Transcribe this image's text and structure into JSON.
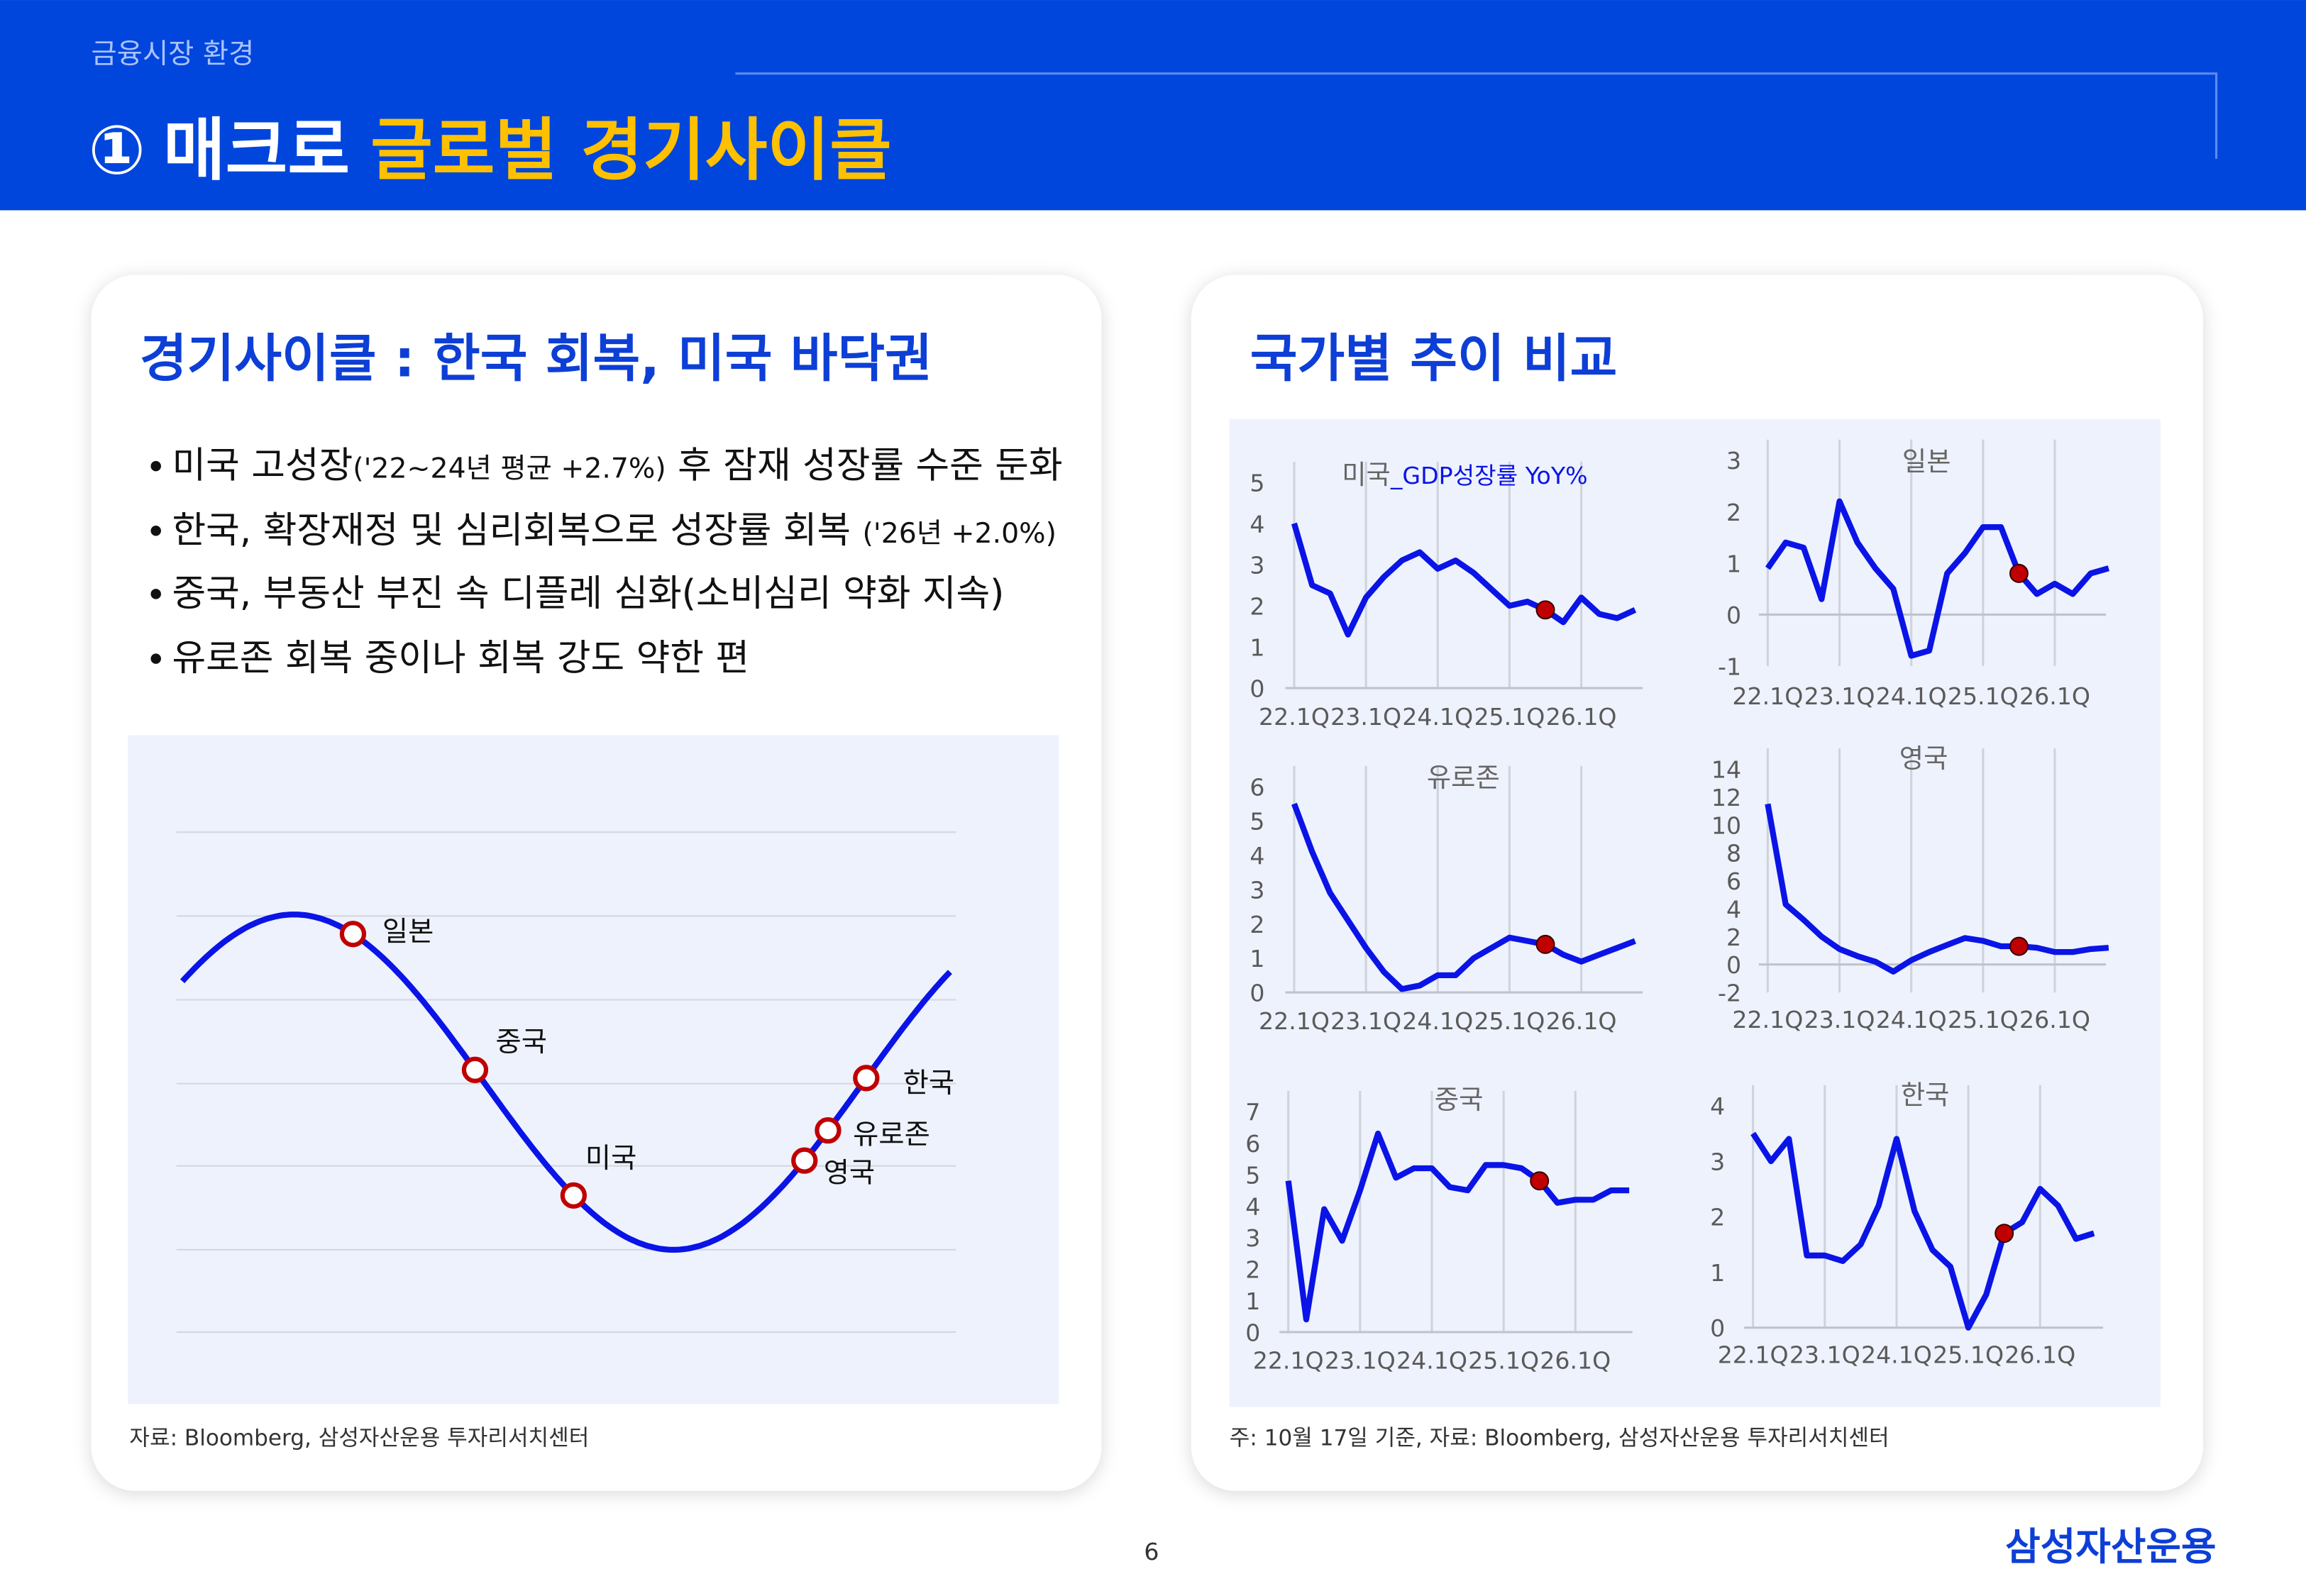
{
  "header": {
    "section": "금융시장 환경",
    "number": "①",
    "title": "매크로",
    "highlight": "글로벌 경기사이클"
  },
  "left": {
    "title": "경기사이클 : 한국 회복, 미국 바닥권",
    "bullets": [
      [
        "미국 고성장",
        "('22~24년 평균 +2.7%)",
        " 후 잠재 성장률 수준 둔화"
      ],
      [
        "한국, 확장재정 및 심리회복으로 성장률 회복 ",
        "('26년 +2.0%)"
      ],
      [
        "중국, 부동산 부진 속 디플레 심화(소비심리 약화 지속)"
      ],
      [
        "유로존 회복 중이나 회복 강도 약한 편"
      ]
    ],
    "cycle": {
      "labels": [
        "일본",
        "중국",
        "미국",
        "영국",
        "유로존",
        "한국"
      ],
      "color": "#0a14e6",
      "point_color": "#c00000"
    },
    "source": "자료: Bloomberg, 삼성자산운용 투자리서치센터"
  },
  "right": {
    "title": "국가별 추이 비교",
    "charts": [
      {
        "type": "line",
        "title": "미국",
        "subtitle": "_GDP성장률 YoY%",
        "categories": [
          "22.1Q",
          null,
          null,
          null,
          "23.1Q",
          null,
          null,
          null,
          "24.1Q",
          null,
          null,
          null,
          "25.1Q",
          null,
          null,
          null,
          "26.1Q",
          null,
          null,
          null
        ],
        "values": [
          4.0,
          2.5,
          2.3,
          1.3,
          2.2,
          2.7,
          3.1,
          3.3,
          2.9,
          3.1,
          2.8,
          2.4,
          2.0,
          2.1,
          1.9,
          1.6,
          2.2,
          1.8,
          1.7,
          1.9
        ],
        "ylim": [
          0,
          5
        ],
        "yticks": [
          0,
          1,
          2,
          3,
          4,
          5
        ],
        "color": "#0a14e6",
        "marker_index": 14,
        "marker_color": "#c00000"
      },
      {
        "type": "line",
        "title": "일본",
        "categories": [
          "22.1Q",
          null,
          null,
          null,
          "23.1Q",
          null,
          null,
          null,
          "24.1Q",
          null,
          null,
          null,
          "25.1Q",
          null,
          null,
          null,
          "26.1Q",
          null,
          null,
          null
        ],
        "values": [
          0.9,
          1.4,
          1.3,
          0.3,
          2.2,
          1.4,
          0.9,
          0.5,
          -0.8,
          -0.7,
          0.8,
          1.2,
          1.7,
          1.7,
          0.8,
          0.4,
          0.6,
          0.4,
          0.8,
          0.9
        ],
        "ylim": [
          -1,
          3
        ],
        "yticks": [
          -1,
          0,
          1,
          2,
          3
        ],
        "color": "#0a14e6",
        "marker_index": 14,
        "marker_color": "#c00000"
      },
      {
        "type": "line",
        "title": "유로존",
        "categories": [
          "22.1Q",
          null,
          null,
          null,
          "23.1Q",
          null,
          null,
          null,
          "24.1Q",
          null,
          null,
          null,
          "25.1Q",
          null,
          null,
          null,
          "26.1Q",
          null,
          null,
          null
        ],
        "values": [
          5.5,
          4.1,
          2.9,
          2.1,
          1.3,
          0.6,
          0.1,
          0.2,
          0.5,
          0.5,
          1.0,
          1.3,
          1.6,
          1.5,
          1.4,
          1.1,
          0.9,
          1.1,
          1.3,
          1.5
        ],
        "ylim": [
          0,
          6
        ],
        "yticks": [
          0,
          1,
          2,
          3,
          4,
          5,
          6
        ],
        "color": "#0a14e6",
        "marker_index": 14,
        "marker_color": "#c00000"
      },
      {
        "type": "line",
        "title": "영국",
        "categories": [
          "22.1Q",
          null,
          null,
          null,
          "23.1Q",
          null,
          null,
          null,
          "24.1Q",
          null,
          null,
          null,
          "25.1Q",
          null,
          null,
          null,
          "26.1Q",
          null,
          null,
          null
        ],
        "values": [
          11.5,
          4.3,
          3.2,
          2.0,
          1.1,
          0.6,
          0.2,
          -0.5,
          0.3,
          0.9,
          1.4,
          1.9,
          1.7,
          1.3,
          1.3,
          1.2,
          0.9,
          0.9,
          1.1,
          1.2
        ],
        "ylim": [
          -2,
          14
        ],
        "yticks": [
          -2,
          0,
          2,
          4,
          6,
          8,
          10,
          12,
          14
        ],
        "color": "#0a14e6",
        "marker_index": 14,
        "marker_color": "#c00000"
      },
      {
        "type": "line",
        "title": "중국",
        "categories": [
          "22.1Q",
          null,
          null,
          null,
          "23.1Q",
          null,
          null,
          null,
          "24.1Q",
          null,
          null,
          null,
          "25.1Q",
          null,
          null,
          null,
          "26.1Q",
          null,
          null,
          null
        ],
        "values": [
          4.8,
          0.4,
          3.9,
          2.9,
          4.5,
          6.3,
          4.9,
          5.2,
          5.2,
          4.6,
          4.5,
          5.3,
          5.3,
          5.2,
          4.8,
          4.1,
          4.2,
          4.2,
          4.5,
          4.5
        ],
        "ylim": [
          0,
          7
        ],
        "yticks": [
          0,
          1,
          2,
          3,
          4,
          5,
          6,
          7
        ],
        "color": "#0a14e6",
        "marker_index": 14,
        "marker_color": "#c00000"
      },
      {
        "type": "line",
        "title": "한국",
        "categories": [
          "22.1Q",
          null,
          null,
          null,
          "23.1Q",
          null,
          null,
          null,
          "24.1Q",
          null,
          null,
          null,
          "25.1Q",
          null,
          null,
          null,
          "26.1Q",
          null,
          null,
          null
        ],
        "values": [
          3.5,
          3.0,
          3.4,
          1.3,
          1.3,
          1.2,
          1.5,
          2.2,
          3.4,
          2.1,
          1.4,
          1.1,
          0.0,
          0.6,
          1.7,
          1.9,
          2.5,
          2.2,
          1.6,
          1.7
        ],
        "ylim": [
          0,
          4
        ],
        "yticks": [
          0,
          1,
          2,
          3,
          4
        ],
        "color": "#0a14e6",
        "marker_index": 14,
        "marker_color": "#c00000"
      }
    ],
    "note": "주: 10월 17일 기준, 자료: Bloomberg, 삼성자산운용 투자리서치센터"
  },
  "footer": {
    "page": "6",
    "logo": "삼성자산운용"
  }
}
